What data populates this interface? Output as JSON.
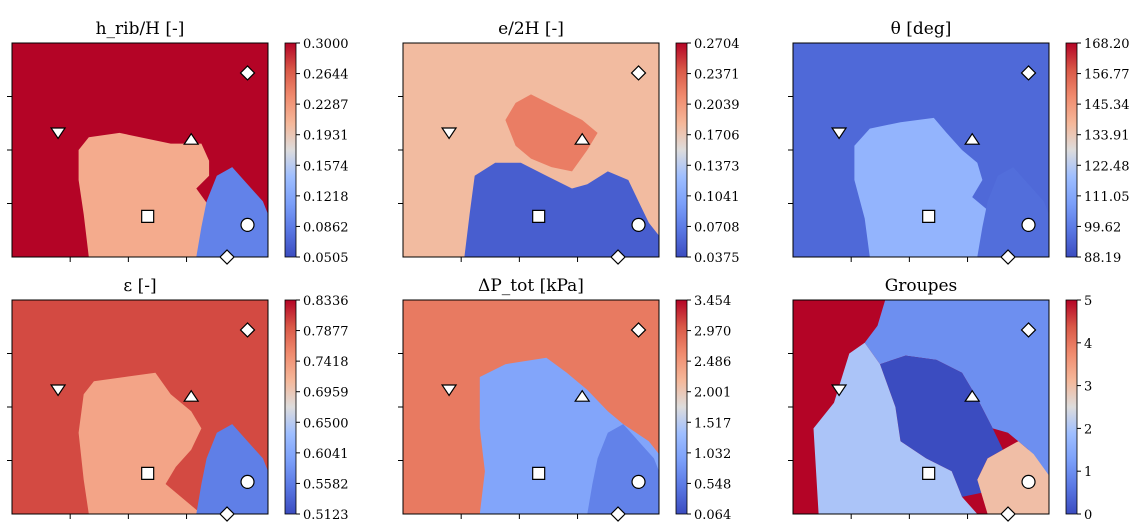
{
  "figure": {
    "markers": [
      {
        "shape": "diamond",
        "label": ""
      },
      {
        "shape": "triangle-down",
        "label": ""
      },
      {
        "shape": "triangle-up",
        "label": ""
      },
      {
        "shape": "square",
        "label": ""
      },
      {
        "shape": "circle",
        "label": ""
      },
      {
        "shape": "diamond",
        "label": ""
      }
    ]
  },
  "chart_data": [
    {
      "type": "heatmap",
      "title": "h_rib/H [-]",
      "colormap": "coolwarm",
      "colorbar": {
        "min": 0.0505,
        "max": 0.3,
        "ticks": [
          "0.3000",
          "0.2644",
          "0.2287",
          "0.1931",
          "0.1574",
          "0.1218",
          "0.0862",
          "0.0505"
        ]
      },
      "regions": [
        {
          "name": "top",
          "value": 0.3
        },
        {
          "name": "middle",
          "value": 0.215
        },
        {
          "name": "bottom-right",
          "value": 0.09
        }
      ]
    },
    {
      "type": "heatmap",
      "title": "e/2H [-]",
      "colormap": "coolwarm",
      "colorbar": {
        "min": 0.0375,
        "max": 0.2704,
        "ticks": [
          "0.2704",
          "0.2371",
          "0.2039",
          "0.1706",
          "0.1373",
          "0.1041",
          "0.0708",
          "0.0375"
        ]
      },
      "regions": [
        {
          "name": "top",
          "value": 0.18
        },
        {
          "name": "middle",
          "value": 0.22
        },
        {
          "name": "bottom-right",
          "value": 0.05
        }
      ]
    },
    {
      "type": "heatmap",
      "title": "θ [deg]",
      "colormap": "coolwarm",
      "colorbar": {
        "min": 88.19,
        "max": 168.2,
        "ticks": [
          "168.20",
          "156.77",
          "145.34",
          "133.91",
          "122.48",
          "111.05",
          "99.62",
          "88.19"
        ]
      },
      "regions": [
        {
          "name": "top",
          "value": 95.0
        },
        {
          "name": "middle",
          "value": 115.0
        },
        {
          "name": "bottom-right",
          "value": 96.0
        }
      ]
    },
    {
      "type": "heatmap",
      "title": "ε [-]",
      "colormap": "coolwarm",
      "colorbar": {
        "min": 0.5123,
        "max": 0.8336,
        "ticks": [
          "0.8336",
          "0.7877",
          "0.7418",
          "0.6959",
          "0.6500",
          "0.6041",
          "0.5582",
          "0.5123"
        ]
      },
      "regions": [
        {
          "name": "top",
          "value": 0.8
        },
        {
          "name": "middle",
          "value": 0.73
        },
        {
          "name": "bottom-right",
          "value": 0.56
        }
      ]
    },
    {
      "type": "heatmap",
      "title": "ΔP_tot [kPa]",
      "colormap": "coolwarm",
      "colorbar": {
        "min": 0.064,
        "max": 3.454,
        "ticks": [
          "3.454",
          "2.970",
          "2.486",
          "2.001",
          "1.517",
          "1.032",
          "0.548",
          "0.064"
        ]
      },
      "regions": [
        {
          "name": "top",
          "value": 2.75
        },
        {
          "name": "middle",
          "value": 1.0
        },
        {
          "name": "bottom-right",
          "value": 0.6
        }
      ]
    },
    {
      "type": "heatmap",
      "title": "Groupes",
      "colormap": "coolwarm",
      "colorbar": {
        "min": 0,
        "max": 5,
        "ticks": [
          "5",
          "4",
          "3",
          "2",
          "1",
          "0"
        ]
      },
      "regions": [
        {
          "name": "left",
          "value": 5
        },
        {
          "name": "top",
          "value": 1
        },
        {
          "name": "middle",
          "value": 0
        },
        {
          "name": "bottom-center",
          "value": 2
        },
        {
          "name": "bottom-right",
          "value": 3
        }
      ]
    }
  ]
}
